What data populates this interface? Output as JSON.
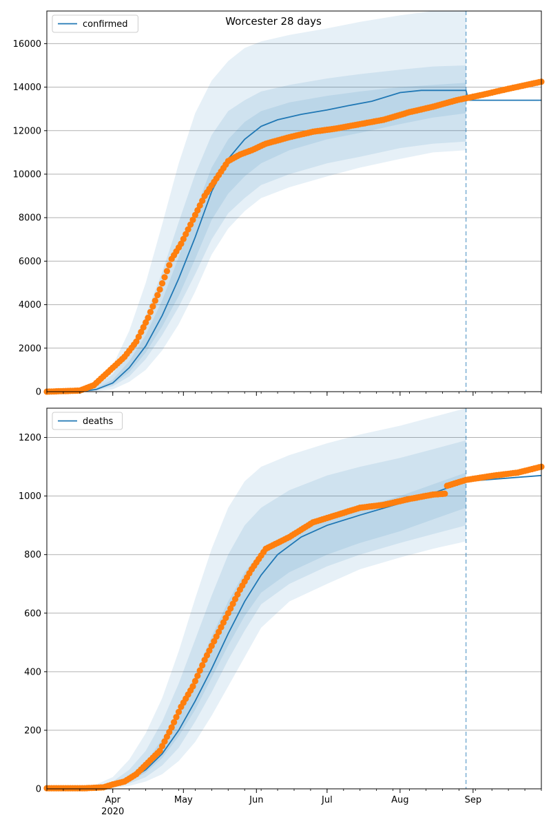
{
  "title": "Worcester 28 days",
  "colors": {
    "model": "#1f77b4",
    "observed": "#ff7f0e",
    "band": "#1f77b4",
    "grid": "#b0b0b0"
  },
  "x_axis": {
    "ticks": [
      {
        "date": "2020-04-01",
        "label": "Apr"
      },
      {
        "date": "2020-05-01",
        "label": "May"
      },
      {
        "date": "2020-06-01",
        "label": "Jun"
      },
      {
        "date": "2020-07-01",
        "label": "Jul"
      },
      {
        "date": "2020-08-01",
        "label": "Aug"
      },
      {
        "date": "2020-09-01",
        "label": "Sep"
      }
    ],
    "year_label": "2020",
    "range": [
      "2020-03-04",
      "2020-09-30"
    ]
  },
  "chart_data": [
    {
      "type": "line",
      "legend": "confirmed",
      "legend_position": "top-left",
      "grid": "horizontal",
      "ylim": [
        0,
        17500
      ],
      "yticks": [
        0,
        2000,
        4000,
        6000,
        8000,
        10000,
        12000,
        14000,
        16000
      ],
      "forecast_start": "2020-08-29",
      "model": {
        "x": [
          "2020-03-04",
          "2020-03-18",
          "2020-03-25",
          "2020-04-01",
          "2020-04-08",
          "2020-04-15",
          "2020-04-22",
          "2020-04-29",
          "2020-05-06",
          "2020-05-13",
          "2020-05-20",
          "2020-05-27",
          "2020-06-03",
          "2020-06-10",
          "2020-06-20",
          "2020-07-01",
          "2020-07-10",
          "2020-07-20",
          "2020-08-01",
          "2020-08-10",
          "2020-08-29",
          "2020-08-30",
          "2020-09-30"
        ],
        "y": [
          0,
          0,
          100,
          400,
          1100,
          2100,
          3500,
          5200,
          7100,
          9200,
          10700,
          11600,
          12200,
          12500,
          12750,
          12950,
          13150,
          13350,
          13750,
          13850,
          13850,
          13400,
          13400
        ]
      },
      "observed": {
        "x": [
          "2020-03-04",
          "2020-03-18",
          "2020-03-24",
          "2020-03-28",
          "2020-04-01",
          "2020-04-06",
          "2020-04-11",
          "2020-04-16",
          "2020-04-21",
          "2020-04-26",
          "2020-04-30",
          "2020-05-05",
          "2020-05-10",
          "2020-05-15",
          "2020-05-20",
          "2020-05-25",
          "2020-05-30",
          "2020-06-05",
          "2020-06-15",
          "2020-06-25",
          "2020-07-05",
          "2020-07-15",
          "2020-07-25",
          "2020-08-05",
          "2020-08-15",
          "2020-08-25",
          "2020-09-05",
          "2020-09-15",
          "2020-09-30"
        ],
        "y": [
          0,
          50,
          300,
          700,
          1100,
          1600,
          2300,
          3400,
          4700,
          6100,
          6800,
          7900,
          9000,
          9800,
          10600,
          10900,
          11100,
          11400,
          11700,
          11950,
          12100,
          12300,
          12500,
          12850,
          13100,
          13400,
          13650,
          13900,
          14250
        ]
      },
      "bands": {
        "x": [
          "2020-03-04",
          "2020-03-18",
          "2020-03-25",
          "2020-04-01",
          "2020-04-08",
          "2020-04-15",
          "2020-04-22",
          "2020-04-29",
          "2020-05-06",
          "2020-05-13",
          "2020-05-20",
          "2020-05-27",
          "2020-06-03",
          "2020-06-15",
          "2020-07-01",
          "2020-07-15",
          "2020-08-01",
          "2020-08-15",
          "2020-08-29"
        ],
        "outer_upper": [
          0,
          30,
          400,
          1200,
          2800,
          5000,
          7700,
          10500,
          12800,
          14300,
          15200,
          15800,
          16100,
          16400,
          16700,
          17000,
          17300,
          17500,
          17500
        ],
        "outer_lower": [
          0,
          0,
          20,
          100,
          450,
          1000,
          1900,
          3100,
          4600,
          6300,
          7500,
          8300,
          8900,
          9400,
          9900,
          10300,
          10700,
          11000,
          11100
        ],
        "mid_upper": [
          0,
          15,
          250,
          800,
          1900,
          3500,
          5500,
          7800,
          10000,
          11800,
          12900,
          13400,
          13800,
          14100,
          14400,
          14600,
          14800,
          14950,
          15000
        ],
        "mid_lower": [
          0,
          0,
          50,
          250,
          700,
          1500,
          2600,
          3900,
          5400,
          7000,
          8200,
          8900,
          9500,
          10000,
          10500,
          10800,
          11200,
          11400,
          11500
        ],
        "inner_upper": [
          0,
          5,
          160,
          550,
          1400,
          2600,
          4200,
          6200,
          8300,
          10300,
          11600,
          12400,
          12900,
          13300,
          13600,
          13800,
          14000,
          14100,
          14200
        ],
        "inner_lower": [
          0,
          0,
          70,
          330,
          900,
          1800,
          3000,
          4400,
          6100,
          7900,
          9100,
          9900,
          10500,
          11100,
          11600,
          11900,
          12300,
          12600,
          12800
        ]
      }
    },
    {
      "type": "line",
      "legend": "deaths",
      "legend_position": "top-left",
      "grid": "horizontal",
      "ylim": [
        0,
        1300
      ],
      "yticks": [
        0,
        200,
        400,
        600,
        800,
        1000,
        1200
      ],
      "forecast_start": "2020-08-29",
      "model": {
        "x": [
          "2020-03-04",
          "2020-03-25",
          "2020-04-01",
          "2020-04-08",
          "2020-04-15",
          "2020-04-22",
          "2020-04-29",
          "2020-05-06",
          "2020-05-13",
          "2020-05-20",
          "2020-05-27",
          "2020-06-03",
          "2020-06-10",
          "2020-06-20",
          "2020-07-01",
          "2020-07-15",
          "2020-08-01",
          "2020-08-15",
          "2020-08-29",
          "2020-09-30"
        ],
        "y": [
          0,
          3,
          10,
          30,
          65,
          120,
          200,
          300,
          410,
          530,
          640,
          730,
          800,
          860,
          900,
          935,
          975,
          1010,
          1050,
          1070
        ]
      },
      "observed": {
        "x": [
          "2020-03-04",
          "2020-03-20",
          "2020-03-28",
          "2020-04-01",
          "2020-04-06",
          "2020-04-11",
          "2020-04-16",
          "2020-04-21",
          "2020-04-26",
          "2020-04-30",
          "2020-05-05",
          "2020-05-10",
          "2020-05-15",
          "2020-05-20",
          "2020-05-25",
          "2020-05-30",
          "2020-06-05",
          "2020-06-15",
          "2020-06-25",
          "2020-07-05",
          "2020-07-15",
          "2020-07-25",
          "2020-08-05",
          "2020-08-15",
          "2020-08-20",
          "2020-08-21",
          "2020-08-29",
          "2020-09-10",
          "2020-09-20",
          "2020-09-30"
        ],
        "y": [
          2,
          2,
          5,
          15,
          25,
          50,
          90,
          130,
          210,
          280,
          350,
          440,
          520,
          600,
          680,
          750,
          820,
          860,
          910,
          935,
          960,
          970,
          990,
          1005,
          1008,
          1035,
          1055,
          1070,
          1080,
          1100
        ]
      },
      "bands": {
        "x": [
          "2020-03-04",
          "2020-03-25",
          "2020-04-01",
          "2020-04-08",
          "2020-04-15",
          "2020-04-22",
          "2020-04-29",
          "2020-05-06",
          "2020-05-13",
          "2020-05-20",
          "2020-05-27",
          "2020-06-03",
          "2020-06-15",
          "2020-07-01",
          "2020-07-15",
          "2020-08-01",
          "2020-08-15",
          "2020-08-29"
        ],
        "outer_upper": [
          0,
          15,
          40,
          100,
          190,
          310,
          470,
          650,
          820,
          960,
          1050,
          1100,
          1140,
          1180,
          1210,
          1240,
          1270,
          1300
        ],
        "outer_lower": [
          0,
          0,
          3,
          10,
          25,
          50,
          95,
          160,
          250,
          350,
          450,
          550,
          640,
          700,
          750,
          790,
          820,
          845
        ],
        "mid_upper": [
          0,
          8,
          25,
          65,
          130,
          230,
          360,
          510,
          660,
          800,
          900,
          960,
          1020,
          1070,
          1100,
          1130,
          1160,
          1190
        ],
        "mid_lower": [
          0,
          1,
          6,
          18,
          40,
          80,
          140,
          230,
          330,
          440,
          540,
          630,
          700,
          760,
          800,
          840,
          870,
          900
        ],
        "inner_upper": [
          0,
          5,
          16,
          45,
          90,
          170,
          270,
          390,
          520,
          640,
          740,
          810,
          870,
          920,
          960,
          1000,
          1040,
          1080
        ],
        "inner_lower": [
          0,
          2,
          8,
          25,
          55,
          105,
          180,
          270,
          380,
          490,
          590,
          670,
          740,
          800,
          840,
          880,
          920,
          960
        ]
      }
    }
  ]
}
